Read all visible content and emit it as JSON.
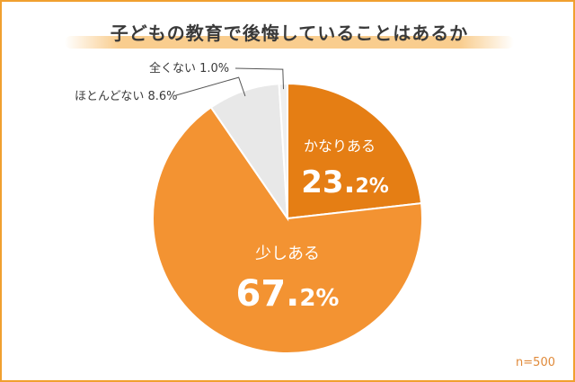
{
  "chart_data": {
    "type": "pie",
    "title": "子どもの教育で後悔していることはあるか",
    "categories": [
      "かなりある",
      "少しある",
      "ほとんどない",
      "全くない"
    ],
    "values": [
      23.2,
      67.2,
      8.6,
      1.0
    ],
    "slice_labels": [
      "かなりある",
      "少しある",
      "ほとんどない 8.6%",
      "全くない 1.0%"
    ],
    "slice_value_texts": [
      "23.",
      "2%",
      "67.",
      "2%"
    ],
    "colors": [
      "#e57e14",
      "#f39332",
      "#e8e8e8",
      "#efefef"
    ],
    "sample_label": "n=500"
  }
}
